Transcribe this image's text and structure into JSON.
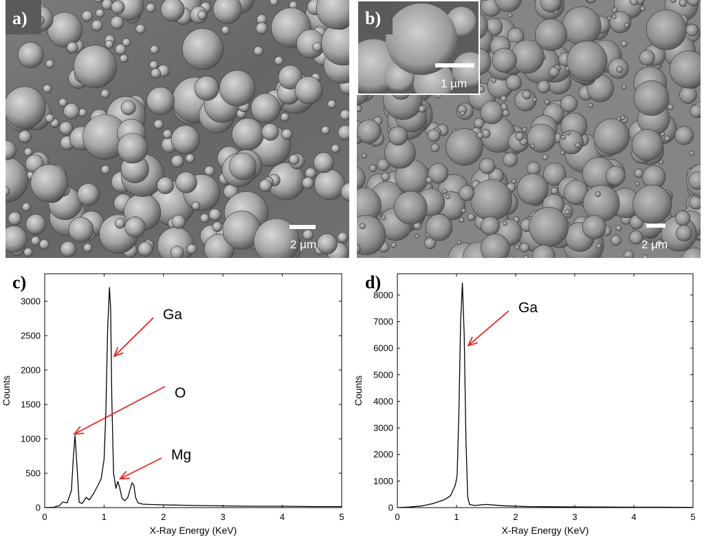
{
  "panels": {
    "a": {
      "letter": "a)",
      "scale_label": "2 µm"
    },
    "b": {
      "letter": "b)",
      "scale_label": "2 µm",
      "inset_scale_label": "1 µm"
    },
    "c": {
      "letter": "c)"
    },
    "d": {
      "letter": "d)"
    }
  },
  "colors": {
    "arrow": "#e8231f",
    "trace": "#000000"
  },
  "chart_data": [
    {
      "panel": "c",
      "type": "line",
      "xlabel": "X-Ray Energy (KeV)",
      "ylabel": "Counts",
      "xlim": [
        0,
        5
      ],
      "ylim": [
        0,
        3400
      ],
      "xticks": [
        0,
        1,
        2,
        3,
        4,
        5
      ],
      "yticks": [
        0,
        500,
        1000,
        1500,
        2000,
        2500,
        3000
      ],
      "series": [
        {
          "x": [
            0.0,
            0.15,
            0.25,
            0.3,
            0.38,
            0.45,
            0.48,
            0.51,
            0.54,
            0.58,
            0.63,
            0.7,
            0.75,
            0.82,
            0.9,
            0.95,
            1.0,
            1.03,
            1.06,
            1.09,
            1.11,
            1.13,
            1.16,
            1.2,
            1.23,
            1.26,
            1.3,
            1.35,
            1.4,
            1.44,
            1.47,
            1.5,
            1.53,
            1.57,
            1.65,
            1.8,
            2.0,
            2.3,
            2.6,
            3.0,
            3.5,
            4.0,
            4.5,
            5.0
          ],
          "y": [
            0,
            5,
            30,
            80,
            70,
            250,
            700,
            1050,
            650,
            80,
            60,
            150,
            110,
            200,
            330,
            420,
            700,
            1400,
            2600,
            3200,
            2900,
            1600,
            500,
            280,
            380,
            300,
            140,
            100,
            150,
            270,
            360,
            330,
            150,
            70,
            50,
            45,
            40,
            35,
            30,
            25,
            20,
            20,
            15,
            15
          ]
        }
      ],
      "annotations": [
        {
          "text": "Ga",
          "points_to": [
            1.17,
            2200
          ]
        },
        {
          "text": "O",
          "points_to": [
            0.5,
            1070
          ]
        },
        {
          "text": "Mg",
          "points_to": [
            1.27,
            420
          ]
        }
      ]
    },
    {
      "panel": "d",
      "type": "line",
      "xlabel": "X-Ray Energy (KeV)",
      "ylabel": "Counts",
      "xlim": [
        0,
        5
      ],
      "ylim": [
        0,
        8800
      ],
      "xticks": [
        0,
        1,
        2,
        3,
        4,
        5
      ],
      "yticks": [
        0,
        1000,
        2000,
        3000,
        4000,
        5000,
        6000,
        7000,
        8000
      ],
      "series": [
        {
          "x": [
            0.0,
            0.2,
            0.4,
            0.6,
            0.8,
            0.9,
            0.95,
            0.98,
            1.01,
            1.04,
            1.07,
            1.1,
            1.13,
            1.16,
            1.19,
            1.22,
            1.3,
            1.5,
            1.8,
            2.2,
            2.6,
            3.0,
            3.5,
            4.0,
            4.5,
            5.0
          ],
          "y": [
            0,
            20,
            60,
            150,
            300,
            450,
            700,
            850,
            1200,
            3500,
            7000,
            8450,
            6500,
            2500,
            400,
            120,
            80,
            120,
            70,
            40,
            30,
            25,
            20,
            15,
            15,
            10
          ]
        }
      ],
      "annotations": [
        {
          "text": "Ga",
          "points_to": [
            1.2,
            6100
          ]
        }
      ]
    }
  ]
}
